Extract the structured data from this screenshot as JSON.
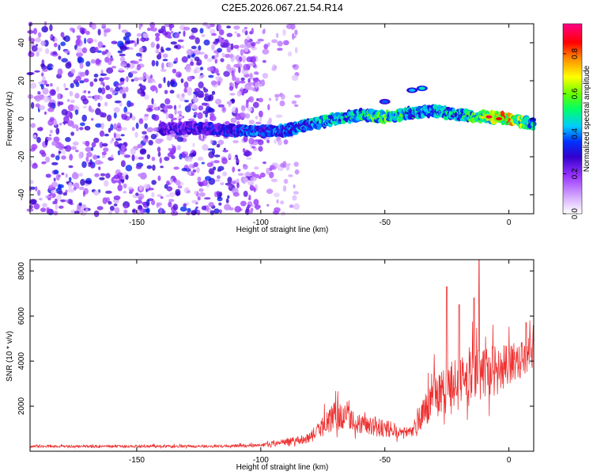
{
  "title": "C2E5.2026.067.21.54.R14",
  "chart_data": [
    {
      "type": "heatmap",
      "xlabel": "Height of straight line (km)",
      "ylabel": "Frequency (Hz)",
      "xlim": [
        -193,
        10
      ],
      "ylim": [
        -50,
        50
      ],
      "xticks": [
        -150,
        -100,
        -50,
        0
      ],
      "yticks": [
        -40,
        -20,
        0,
        20,
        40
      ],
      "colorbar": {
        "label": "Normalized spectral amplitude",
        "range": [
          0.0,
          0.95
        ],
        "ticks": [
          0.0,
          0.2,
          0.4,
          0.6,
          0.8
        ],
        "colors": [
          "#ffffff",
          "#9933ff",
          "#6600cc",
          "#0000ff",
          "#00ccff",
          "#00ff66",
          "#66ff00",
          "#ffff00",
          "#ff6600",
          "#ff0000",
          "#ff00aa"
        ]
      },
      "ridge": [
        {
          "x": -140,
          "y": -5,
          "a": 0.3
        },
        {
          "x": -125,
          "y": -5,
          "a": 0.35
        },
        {
          "x": -110,
          "y": -6,
          "a": 0.4
        },
        {
          "x": -100,
          "y": -7,
          "a": 0.45
        },
        {
          "x": -90,
          "y": -6,
          "a": 0.45
        },
        {
          "x": -80,
          "y": -3,
          "a": 0.5
        },
        {
          "x": -70,
          "y": 0,
          "a": 0.55
        },
        {
          "x": -60,
          "y": 2,
          "a": 0.55
        },
        {
          "x": -50,
          "y": 1,
          "a": 0.7
        },
        {
          "x": -40,
          "y": 3,
          "a": 0.55
        },
        {
          "x": -30,
          "y": 4,
          "a": 0.5
        },
        {
          "x": -20,
          "y": 2,
          "a": 0.55
        },
        {
          "x": -10,
          "y": 1,
          "a": 0.7
        },
        {
          "x": 0,
          "y": 0,
          "a": 0.9
        },
        {
          "x": 10,
          "y": -3,
          "a": 0.55
        }
      ],
      "features": [
        {
          "x": -39,
          "y": 15,
          "a": 0.45
        },
        {
          "x": -35,
          "y": 16,
          "a": 0.5
        },
        {
          "x": -50,
          "y": 9,
          "a": 0.4
        },
        {
          "x": -8,
          "y": 1,
          "a": 0.95
        },
        {
          "x": -4,
          "y": 0,
          "a": 0.9
        }
      ]
    },
    {
      "type": "line",
      "xlabel": "Height of straight line (km)",
      "ylabel": "SNR (10 * v/v)",
      "xlim": [
        -193,
        10
      ],
      "ylim": [
        0,
        8500
      ],
      "xticks": [
        -150,
        -100,
        -50,
        0
      ],
      "yticks": [
        2000,
        4000,
        6000,
        8000
      ],
      "color": "#ee3333",
      "envelope": [
        {
          "x": -193,
          "base": 200,
          "amp": 100
        },
        {
          "x": -120,
          "base": 200,
          "amp": 120
        },
        {
          "x": -100,
          "base": 230,
          "amp": 150
        },
        {
          "x": -90,
          "base": 350,
          "amp": 300
        },
        {
          "x": -80,
          "base": 550,
          "amp": 500
        },
        {
          "x": -70,
          "base": 1400,
          "amp": 1300
        },
        {
          "x": -60,
          "base": 1100,
          "amp": 900
        },
        {
          "x": -50,
          "base": 900,
          "amp": 800
        },
        {
          "x": -40,
          "base": 700,
          "amp": 500
        },
        {
          "x": -30,
          "base": 2200,
          "amp": 2000
        },
        {
          "x": -20,
          "base": 2700,
          "amp": 2500
        },
        {
          "x": -10,
          "base": 2900,
          "amp": 2800
        },
        {
          "x": 0,
          "base": 3600,
          "amp": 1700
        },
        {
          "x": 10,
          "base": 4200,
          "amp": 1500
        }
      ],
      "peaks": [
        {
          "x": -25,
          "y": 7300
        },
        {
          "x": -20,
          "y": 6500
        },
        {
          "x": -12,
          "y": 8500
        },
        {
          "x": -14,
          "y": 6800
        },
        {
          "x": 7,
          "y": 5700
        }
      ]
    }
  ]
}
